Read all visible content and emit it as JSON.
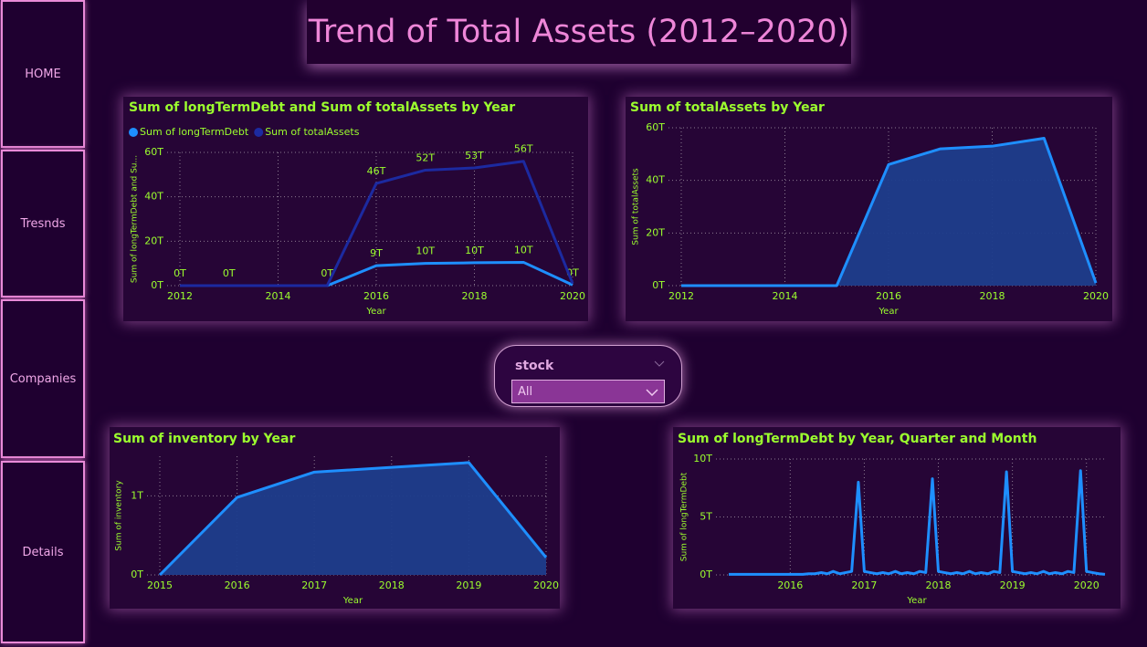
{
  "page_title": "Trend of Total Assets (2012–2020)",
  "nav": [
    "HOME",
    "Tresnds",
    "Companies",
    "Details"
  ],
  "slicer": {
    "label": "stock",
    "value": "All"
  },
  "chart_data": [
    {
      "type": "line",
      "title": "Sum of longTermDebt and Sum of totalAssets by Year",
      "x_label": "Year",
      "y_label": "Sum of longTermDebt and Su...",
      "x": [
        2012,
        2013,
        2014,
        2015,
        2016,
        2017,
        2018,
        2019,
        2020
      ],
      "xlim": [
        2012,
        2020
      ],
      "xticks": [
        2012,
        2014,
        2016,
        2018,
        2020
      ],
      "ylim": [
        0,
        60
      ],
      "yticks": [
        {
          "value": 0,
          "label": "0T"
        },
        {
          "value": 20,
          "label": "20T"
        },
        {
          "value": 40,
          "label": "40T"
        },
        {
          "value": 60,
          "label": "60T"
        }
      ],
      "grid": true,
      "legend": "top-left",
      "series": [
        {
          "name": "Sum of longTermDebt",
          "color": "#1e8fff",
          "values": [
            0,
            0,
            0,
            0,
            9,
            10,
            10.3,
            10.5,
            0.3
          ],
          "value_labels": [
            "0T",
            "0T",
            null,
            "0T",
            "9T",
            "10T",
            "10T",
            "10T",
            "0T"
          ]
        },
        {
          "name": "Sum of totalAssets",
          "color": "#1c2aa0",
          "values": [
            0,
            0,
            0,
            0,
            46,
            52,
            53,
            56,
            1
          ],
          "value_labels": [
            null,
            null,
            null,
            null,
            "46T",
            "52T",
            "53T",
            "56T",
            null
          ]
        }
      ]
    },
    {
      "type": "area",
      "title": "Sum of totalAssets by Year",
      "x_label": "Year",
      "y_label": "Sum of totalAssets",
      "x": [
        2012,
        2013,
        2014,
        2015,
        2016,
        2017,
        2018,
        2019,
        2020
      ],
      "xlim": [
        2012,
        2020
      ],
      "xticks": [
        2012,
        2014,
        2016,
        2018,
        2020
      ],
      "ylim": [
        0,
        60
      ],
      "yticks": [
        {
          "value": 0,
          "label": "0T"
        },
        {
          "value": 20,
          "label": "20T"
        },
        {
          "value": 40,
          "label": "40T"
        },
        {
          "value": 60,
          "label": "60T"
        }
      ],
      "grid": true,
      "color": "#1e8fff",
      "values": [
        0,
        0,
        0,
        0,
        46,
        52,
        53,
        56,
        1
      ]
    },
    {
      "type": "area",
      "title": "Sum of inventory by Year",
      "x_label": "Year",
      "y_label": "Sum of inventory",
      "x": [
        2015,
        2016,
        2017,
        2018,
        2019,
        2020
      ],
      "xlim": [
        2015,
        2020
      ],
      "xticks": [
        2015,
        2016,
        2017,
        2018,
        2019,
        2020
      ],
      "ylim": [
        0,
        1.5
      ],
      "yticks": [
        {
          "value": 0,
          "label": "0T"
        },
        {
          "value": 1,
          "label": "1T"
        }
      ],
      "grid": true,
      "color": "#1e8fff",
      "values": [
        0,
        0.98,
        1.3,
        1.36,
        1.42,
        0.22
      ]
    },
    {
      "type": "line",
      "title": "Sum of longTermDebt by Year, Quarter and Month",
      "x_label": "Year",
      "y_label": "Sum of longTermDebt",
      "x": [
        2015.17,
        2015.25,
        2015.33,
        2015.42,
        2015.5,
        2015.58,
        2015.67,
        2015.75,
        2015.83,
        2015.92,
        2016.0,
        2016.08,
        2016.17,
        2016.25,
        2016.33,
        2016.42,
        2016.5,
        2016.58,
        2016.67,
        2016.75,
        2016.83,
        2016.92,
        2017.0,
        2017.08,
        2017.17,
        2017.25,
        2017.33,
        2017.42,
        2017.5,
        2017.58,
        2017.67,
        2017.75,
        2017.83,
        2017.92,
        2018.0,
        2018.08,
        2018.17,
        2018.25,
        2018.33,
        2018.42,
        2018.5,
        2018.58,
        2018.67,
        2018.75,
        2018.83,
        2018.92,
        2019.0,
        2019.08,
        2019.17,
        2019.25,
        2019.33,
        2019.42,
        2019.5,
        2019.58,
        2019.67,
        2019.75,
        2019.83,
        2019.92,
        2020.0,
        2020.08,
        2020.17,
        2020.25
      ],
      "xlim": [
        2015.17,
        2020.25
      ],
      "xticks": [
        2016,
        2017,
        2018,
        2019,
        2020
      ],
      "ylim": [
        0,
        10
      ],
      "yticks": [
        {
          "value": 0,
          "label": "0T"
        },
        {
          "value": 5,
          "label": "5T"
        },
        {
          "value": 10,
          "label": "10T"
        }
      ],
      "grid": true,
      "color": "#1e8fff",
      "values": [
        0.05,
        0.05,
        0.05,
        0.05,
        0.05,
        0.05,
        0.05,
        0.05,
        0.05,
        0.05,
        0.05,
        0.05,
        0.05,
        0.1,
        0.1,
        0.2,
        0.1,
        0.3,
        0.1,
        0.2,
        0.3,
        8,
        0.3,
        0.2,
        0.1,
        0.2,
        0.1,
        0.3,
        0.1,
        0.2,
        0.1,
        0.3,
        0.2,
        8.3,
        0.3,
        0.2,
        0.1,
        0.2,
        0.1,
        0.3,
        0.1,
        0.2,
        0.1,
        0.3,
        0.2,
        8.9,
        0.3,
        0.2,
        0.1,
        0.2,
        0.1,
        0.3,
        0.1,
        0.2,
        0.1,
        0.3,
        0.2,
        9,
        0.3,
        0.2,
        0.1,
        0.05
      ]
    }
  ]
}
